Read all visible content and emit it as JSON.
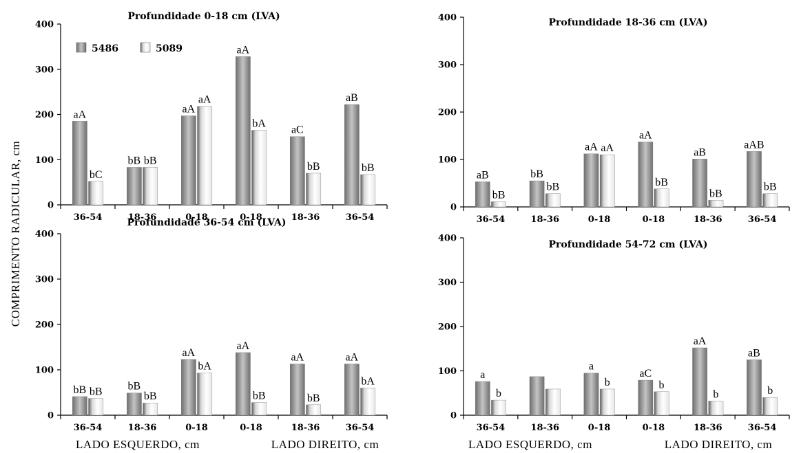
{
  "figure": {
    "ylabel": "COMPRIMENTO RADICULAR, cm",
    "xlabel_left_panels": [
      "LADO ESQUERDO, cm",
      "LADO DIREITO, cm"
    ],
    "xlabel_right_panels": [
      "LADO ESQUERDO, cm",
      "LADO DIREITO, cm"
    ]
  },
  "colors": {
    "series_5486": "#8a8a8a",
    "series_5089": "#e2e2e2",
    "axis": "#000000"
  },
  "chart_data": [
    {
      "type": "bar",
      "title": "Profundidade 0-18 cm (LVA)",
      "categories": [
        "36-54",
        "18-36",
        "0-18",
        "0-18",
        "18-36",
        "36-54"
      ],
      "series": [
        {
          "name": "5486",
          "values": [
            185,
            83,
            197,
            328,
            151,
            222
          ],
          "labels": [
            "aA",
            "bB",
            "aA",
            "aA",
            "aC",
            "aB"
          ]
        },
        {
          "name": "5089",
          "values": [
            52,
            83,
            218,
            165,
            70,
            67
          ],
          "labels": [
            "bC",
            "bB",
            "aA",
            "bA",
            "bB",
            "bB"
          ]
        }
      ],
      "ylim": [
        0,
        400
      ],
      "yticks": [
        0,
        100,
        200,
        300,
        400
      ],
      "legend": "top-left",
      "grid": false
    },
    {
      "type": "bar",
      "title": "Profundidade 18-36 cm (LVA)",
      "categories": [
        "36-54",
        "18-36",
        "0-18",
        "0-18",
        "18-36",
        "36-54"
      ],
      "series": [
        {
          "name": "5486",
          "values": [
            53,
            55,
            112,
            137,
            101,
            117
          ],
          "labels": [
            "aB",
            "bB",
            "aA",
            "aA",
            "aB",
            "aAB"
          ]
        },
        {
          "name": "5089",
          "values": [
            11,
            28,
            110,
            38,
            14,
            28
          ],
          "labels": [
            "bB",
            "bB",
            "aA",
            "bB",
            "bB",
            "bB"
          ]
        }
      ],
      "ylim": [
        0,
        400
      ],
      "yticks": [
        0,
        100,
        200,
        300,
        400
      ],
      "grid": false
    },
    {
      "type": "bar",
      "title": "Profundidade 36-54 cm (LVA)",
      "categories": [
        "36-54",
        "18-36",
        "0-18",
        "0-18",
        "18-36",
        "36-54"
      ],
      "series": [
        {
          "name": "5486",
          "values": [
            41,
            49,
            123,
            138,
            113,
            113
          ],
          "labels": [
            "bB",
            "bB",
            "aA",
            "aA",
            "aA",
            "aA"
          ]
        },
        {
          "name": "5089",
          "values": [
            37,
            27,
            93,
            28,
            23,
            60
          ],
          "labels": [
            "bB",
            "bB",
            "bA",
            "bB",
            "bB",
            "bA"
          ]
        }
      ],
      "ylim": [
        0,
        400
      ],
      "yticks": [
        0,
        100,
        200,
        300,
        400
      ],
      "grid": false
    },
    {
      "type": "bar",
      "title": "Profundidade 54-72 cm (LVA)",
      "categories": [
        "36-54",
        "18-36",
        "0-18",
        "0-18",
        "18-36",
        "36-54"
      ],
      "series": [
        {
          "name": "5486",
          "values": [
            76,
            87,
            95,
            79,
            152,
            125
          ],
          "labels": [
            "a",
            "",
            "a",
            "aC",
            "aA",
            "aB"
          ]
        },
        {
          "name": "5089",
          "values": [
            34,
            59,
            59,
            53,
            32,
            40
          ],
          "labels": [
            "b",
            "",
            "b",
            "b",
            "b",
            "b"
          ]
        }
      ],
      "ylim": [
        0,
        400
      ],
      "yticks": [
        0,
        100,
        200,
        300,
        400
      ],
      "grid": false
    }
  ]
}
